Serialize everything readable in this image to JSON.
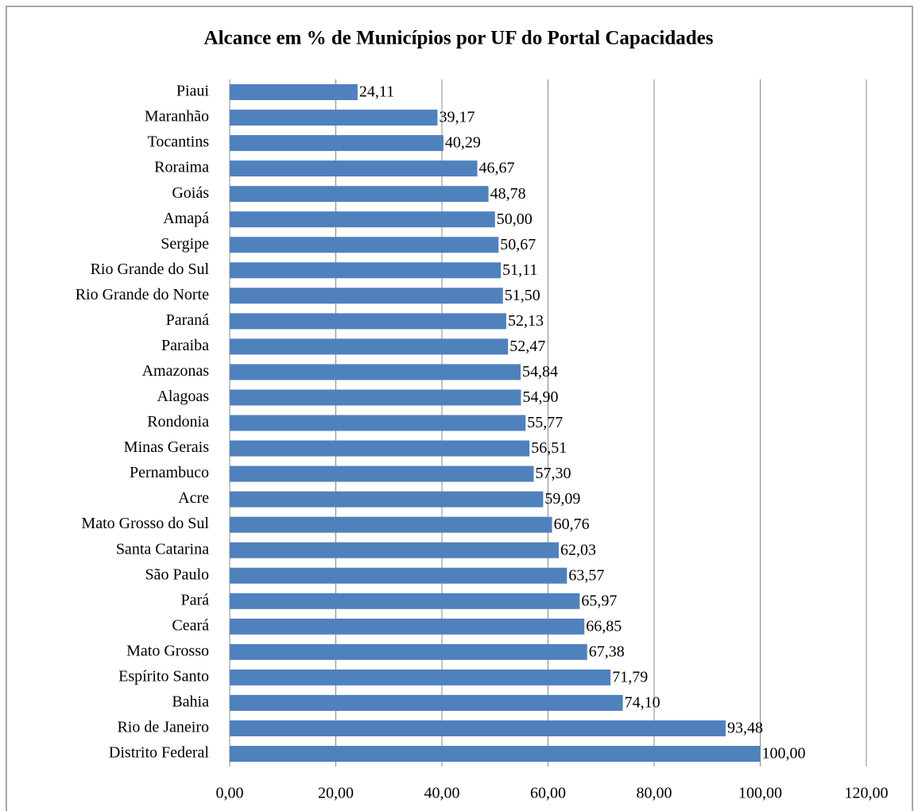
{
  "chart_data": {
    "type": "hbar",
    "title": "Alcance em % de Municípios por UF do Portal Capacidades",
    "categories": [
      "Piaui",
      "Maranhão",
      "Tocantins",
      "Roraima",
      "Goiás",
      "Amapá",
      "Sergipe",
      "Rio Grande do Sul",
      "Rio Grande do Norte",
      "Paraná",
      "Paraiba",
      "Amazonas",
      "Alagoas",
      "Rondonia",
      "Minas Gerais",
      "Pernambuco",
      "Acre",
      "Mato Grosso do Sul",
      "Santa Catarina",
      "São Paulo",
      "Pará",
      "Ceará",
      "Mato Grosso",
      "Espírito Santo",
      "Bahia",
      "Rio de Janeiro",
      "Distrito Federal"
    ],
    "values": [
      24.11,
      39.17,
      40.29,
      46.67,
      48.78,
      50.0,
      50.67,
      51.11,
      51.5,
      52.13,
      52.47,
      54.84,
      54.9,
      55.77,
      56.51,
      57.3,
      59.09,
      60.76,
      62.03,
      63.57,
      65.97,
      66.85,
      67.38,
      71.79,
      74.1,
      93.48,
      100.0
    ],
    "value_labels": [
      "24,11",
      "39,17",
      "40,29",
      "46,67",
      "48,78",
      "50,00",
      "50,67",
      "51,11",
      "51,50",
      "52,13",
      "52,47",
      "54,84",
      "54,90",
      "55,77",
      "56,51",
      "57,30",
      "59,09",
      "60,76",
      "62,03",
      "63,57",
      "65,97",
      "66,85",
      "67,38",
      "71,79",
      "74,10",
      "93,48",
      "100,00"
    ],
    "color": "#4f81bd",
    "xlim": [
      0,
      120
    ],
    "xticks": [
      {
        "value": 0,
        "label": "0,00"
      },
      {
        "value": 20,
        "label": "20,00"
      },
      {
        "value": 40,
        "label": "40,00"
      },
      {
        "value": 60,
        "label": "60,00"
      },
      {
        "value": 80,
        "label": "80,00"
      },
      {
        "value": 100,
        "label": "100,00"
      },
      {
        "value": 120,
        "label": "120,00"
      }
    ],
    "grid": true
  }
}
